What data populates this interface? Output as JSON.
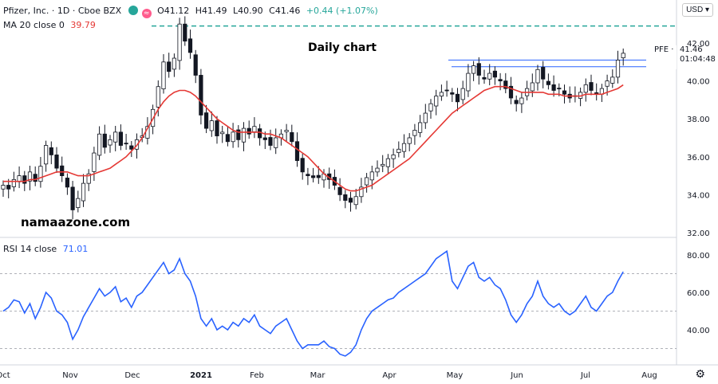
{
  "header": {
    "symbol": "Pfizer, Inc. · 1D · Cboe BZX",
    "open": "O41.12",
    "high": "H41.49",
    "low": "L40.90",
    "close": "C41.46",
    "change": "+0.44 (+1.07%)",
    "ma_label": "MA 20 close 0",
    "ma_value": "39.79",
    "rsi_label": "RSI 14 close",
    "rsi_value": "71.01",
    "currency": "USD",
    "badge2": "≈"
  },
  "annotations": {
    "daily_chart": "Daily chart",
    "watermark": "namaazone.com"
  },
  "price_label": {
    "ticker": "PFE",
    "price": "41.46",
    "countdown": "01:04:48"
  },
  "icons": {
    "settings": "gear-icon"
  },
  "colors": {
    "up": "#26a69a",
    "down": "#131722",
    "ma": "#e53935",
    "rsi": "#2962ff",
    "dashed": "#26a69a",
    "hline": "#2962ff"
  },
  "chart_data": {
    "type": "candlestick",
    "x_labels": [
      "Oct",
      "Nov",
      "Dec",
      "2021",
      "Feb",
      "Mar",
      "Apr",
      "May",
      "Jun",
      "Jul",
      "Aug"
    ],
    "price_ticks": [
      32.0,
      34.0,
      36.0,
      38.0,
      40.0,
      42.0
    ],
    "price_axis_top_label": "4",
    "rsi_ticks": [
      40.0,
      60.0,
      80.0
    ],
    "rsi_guides": [
      30,
      50,
      70
    ],
    "resistance_levels": [
      42.9,
      41.1,
      40.75
    ],
    "last_price": 41.46,
    "close": [
      34.5,
      34.3,
      34.8,
      35.0,
      34.6,
      35.2,
      34.7,
      35.5,
      36.6,
      36.1,
      35.4,
      35.0,
      34.4,
      33.2,
      33.8,
      34.6,
      35.1,
      36.2,
      37.2,
      36.5,
      36.9,
      37.3,
      36.6,
      36.7,
      36.4,
      36.9,
      37.1,
      37.6,
      38.5,
      39.7,
      41.0,
      40.5,
      41.2,
      43.0,
      42.1,
      41.5,
      40.3,
      38.2,
      37.5,
      37.9,
      37.1,
      37.3,
      36.8,
      37.3,
      36.9,
      37.5,
      37.2,
      37.6,
      37.0,
      36.9,
      36.6,
      37.0,
      37.2,
      37.4,
      36.8,
      35.8,
      35.2,
      35.0,
      34.9,
      34.9,
      35.1,
      34.8,
      34.5,
      34.0,
      33.7,
      33.6,
      33.9,
      34.4,
      34.9,
      35.2,
      35.4,
      35.6,
      35.9,
      36.1,
      36.4,
      36.7,
      37.0,
      37.4,
      37.8,
      38.3,
      38.8,
      39.2,
      39.4,
      39.5,
      39.3,
      38.9,
      39.6,
      40.4,
      40.8,
      40.3,
      40.1,
      40.4,
      40.2,
      40.0,
      39.6,
      39.1,
      38.8,
      39.1,
      39.6,
      39.9,
      40.6,
      40.1,
      39.8,
      39.5,
      39.6,
      39.3,
      39.1,
      39.2,
      39.4,
      39.8,
      39.5,
      39.3,
      39.6,
      40.0,
      40.2,
      41.1,
      41.46
    ],
    "ma20": [
      34.7,
      34.7,
      34.7,
      34.7,
      34.7,
      34.8,
      34.8,
      34.9,
      35.0,
      35.1,
      35.2,
      35.2,
      35.2,
      35.1,
      35.0,
      35.0,
      35.0,
      35.1,
      35.2,
      35.3,
      35.4,
      35.6,
      35.8,
      36.0,
      36.3,
      36.6,
      37.0,
      37.5,
      38.0,
      38.5,
      38.9,
      39.2,
      39.4,
      39.5,
      39.5,
      39.4,
      39.2,
      38.9,
      38.6,
      38.3,
      38.0,
      37.8,
      37.6,
      37.4,
      37.3,
      37.3,
      37.3,
      37.3,
      37.3,
      37.2,
      37.2,
      37.1,
      37.0,
      36.8,
      36.6,
      36.4,
      36.2,
      36.0,
      35.7,
      35.4,
      35.1,
      34.9,
      34.7,
      34.5,
      34.3,
      34.2,
      34.2,
      34.3,
      34.4,
      34.5,
      34.7,
      34.9,
      35.1,
      35.3,
      35.5,
      35.7,
      35.9,
      36.2,
      36.5,
      36.8,
      37.1,
      37.4,
      37.7,
      38.0,
      38.3,
      38.5,
      38.7,
      38.9,
      39.1,
      39.3,
      39.5,
      39.6,
      39.7,
      39.7,
      39.7,
      39.6,
      39.5,
      39.4,
      39.4,
      39.4,
      39.4,
      39.4,
      39.3,
      39.3,
      39.3,
      39.2,
      39.2,
      39.2,
      39.2,
      39.3,
      39.3,
      39.3,
      39.3,
      39.4,
      39.5,
      39.6,
      39.79
    ],
    "rsi14": [
      50,
      52,
      56,
      55,
      49,
      54,
      46,
      52,
      60,
      57,
      50,
      48,
      44,
      35,
      40,
      47,
      52,
      57,
      62,
      58,
      60,
      63,
      55,
      57,
      52,
      58,
      60,
      64,
      68,
      72,
      76,
      70,
      72,
      78,
      70,
      66,
      58,
      46,
      42,
      46,
      40,
      42,
      40,
      44,
      42,
      46,
      44,
      48,
      42,
      40,
      38,
      42,
      44,
      46,
      40,
      34,
      30,
      32,
      32,
      32,
      34,
      31,
      30,
      27,
      26,
      28,
      32,
      40,
      46,
      50,
      52,
      54,
      56,
      57,
      60,
      62,
      64,
      66,
      68,
      70,
      74,
      78,
      80,
      82,
      66,
      62,
      68,
      74,
      76,
      68,
      66,
      68,
      64,
      62,
      56,
      48,
      44,
      48,
      54,
      58,
      66,
      58,
      54,
      52,
      54,
      50,
      48,
      50,
      54,
      58,
      52,
      50,
      54,
      58,
      60,
      66,
      71
    ]
  }
}
